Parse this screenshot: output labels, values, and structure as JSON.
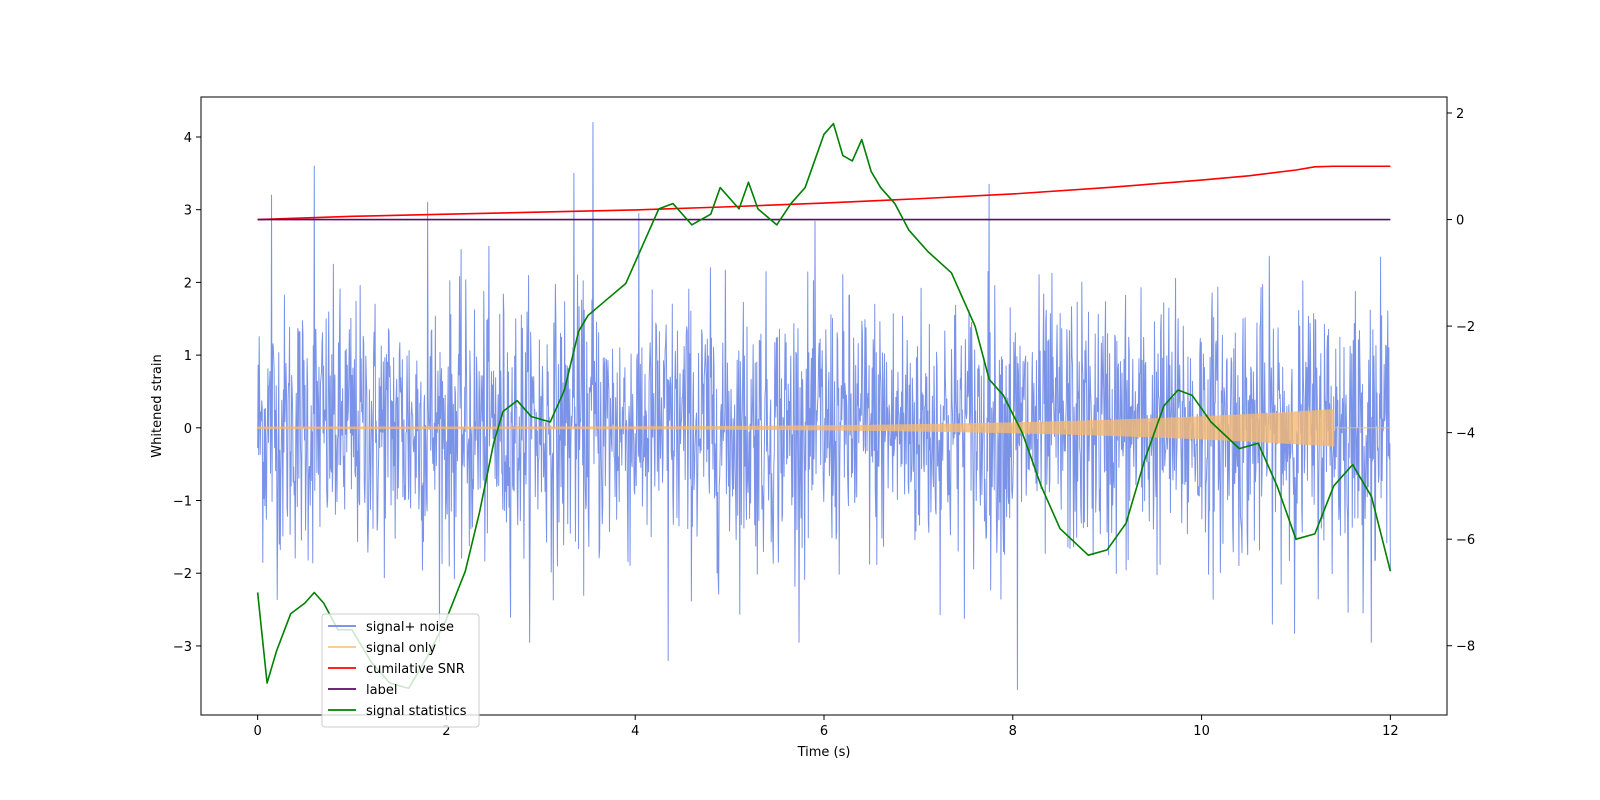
{
  "chart_data": {
    "type": "line",
    "title": "",
    "xlabel": "Time (s)",
    "ylabel": "Whitened strain",
    "xlim": [
      -0.6,
      12.6
    ],
    "ylim": [
      -3.95,
      4.55
    ],
    "y2lim": [
      -9.3,
      2.3
    ],
    "x_ticks": [
      0,
      2,
      4,
      6,
      8,
      10,
      12
    ],
    "y_ticks": [
      -3,
      -2,
      -1,
      0,
      1,
      2,
      3,
      4
    ],
    "y2_ticks": [
      -8,
      -6,
      -4,
      -2,
      0,
      2
    ],
    "legend_position": "lower-left",
    "series": [
      {
        "name": "signal+ noise",
        "axis": "left",
        "color": "#6b87e6",
        "kind": "noise",
        "x_range": [
          0,
          12
        ],
        "mean": 0.0,
        "std": 0.9,
        "peaks": [
          [
            0.6,
            3.6
          ],
          [
            1.8,
            3.1
          ],
          [
            3.35,
            3.5
          ],
          [
            3.55,
            4.2
          ],
          [
            7.75,
            3.35
          ],
          [
            8.05,
            -3.6
          ],
          [
            4.35,
            -3.2
          ],
          [
            0.15,
            3.2
          ]
        ]
      },
      {
        "name": "signal only",
        "axis": "left",
        "color": "#f5b971",
        "kind": "chirp",
        "x_range": [
          0,
          11.4
        ],
        "amp_start": 0.01,
        "amp_end": 0.25
      },
      {
        "name": "cumilative SNR",
        "axis": "right",
        "color": "#ff0000",
        "x": [
          0,
          1,
          2,
          3,
          4,
          5,
          6,
          7,
          8,
          9,
          10,
          10.5,
          11,
          11.2,
          11.4,
          12
        ],
        "y": [
          0,
          0.06,
          0.1,
          0.14,
          0.18,
          0.24,
          0.31,
          0.39,
          0.48,
          0.6,
          0.74,
          0.82,
          0.93,
          0.99,
          1.0,
          1.0
        ]
      },
      {
        "name": "label",
        "axis": "right",
        "color": "#5c0a6b",
        "x": [
          0,
          12
        ],
        "y": [
          0,
          0
        ]
      },
      {
        "name": "signal statistics",
        "axis": "right",
        "color": "#008000",
        "x": [
          0,
          0.1,
          0.2,
          0.35,
          0.5,
          0.6,
          0.7,
          0.85,
          1.0,
          1.2,
          1.4,
          1.6,
          1.8,
          2.0,
          2.2,
          2.35,
          2.5,
          2.6,
          2.75,
          2.9,
          3.1,
          3.25,
          3.4,
          3.5,
          3.7,
          3.9,
          4.1,
          4.25,
          4.4,
          4.6,
          4.8,
          4.9,
          5.1,
          5.2,
          5.3,
          5.5,
          5.65,
          5.8,
          5.9,
          6.0,
          6.1,
          6.2,
          6.3,
          6.4,
          6.5,
          6.6,
          6.75,
          6.9,
          7.1,
          7.35,
          7.6,
          7.75,
          7.9,
          8.1,
          8.3,
          8.5,
          8.8,
          9.0,
          9.2,
          9.4,
          9.6,
          9.75,
          9.9,
          10.1,
          10.4,
          10.6,
          10.8,
          11.0,
          11.2,
          11.4,
          11.6,
          11.8,
          12.0
        ],
        "y": [
          -7.0,
          -8.7,
          -8.1,
          -7.4,
          -7.2,
          -7.0,
          -7.2,
          -7.7,
          -7.7,
          -8.3,
          -8.7,
          -8.8,
          -8.2,
          -7.5,
          -6.6,
          -5.5,
          -4.2,
          -3.6,
          -3.4,
          -3.7,
          -3.8,
          -3.2,
          -2.1,
          -1.8,
          -1.5,
          -1.2,
          -0.4,
          0.2,
          0.3,
          -0.1,
          0.1,
          0.6,
          0.2,
          0.7,
          0.2,
          -0.1,
          0.3,
          0.6,
          1.1,
          1.6,
          1.8,
          1.2,
          1.1,
          1.5,
          0.9,
          0.6,
          0.3,
          -0.2,
          -0.6,
          -1.0,
          -2.0,
          -3.0,
          -3.3,
          -4.0,
          -5.0,
          -5.8,
          -6.3,
          -6.2,
          -5.7,
          -4.5,
          -3.5,
          -3.2,
          -3.3,
          -3.8,
          -4.3,
          -4.2,
          -5.0,
          -6.0,
          -5.9,
          -5.0,
          -4.6,
          -5.2,
          -6.6
        ]
      }
    ]
  }
}
